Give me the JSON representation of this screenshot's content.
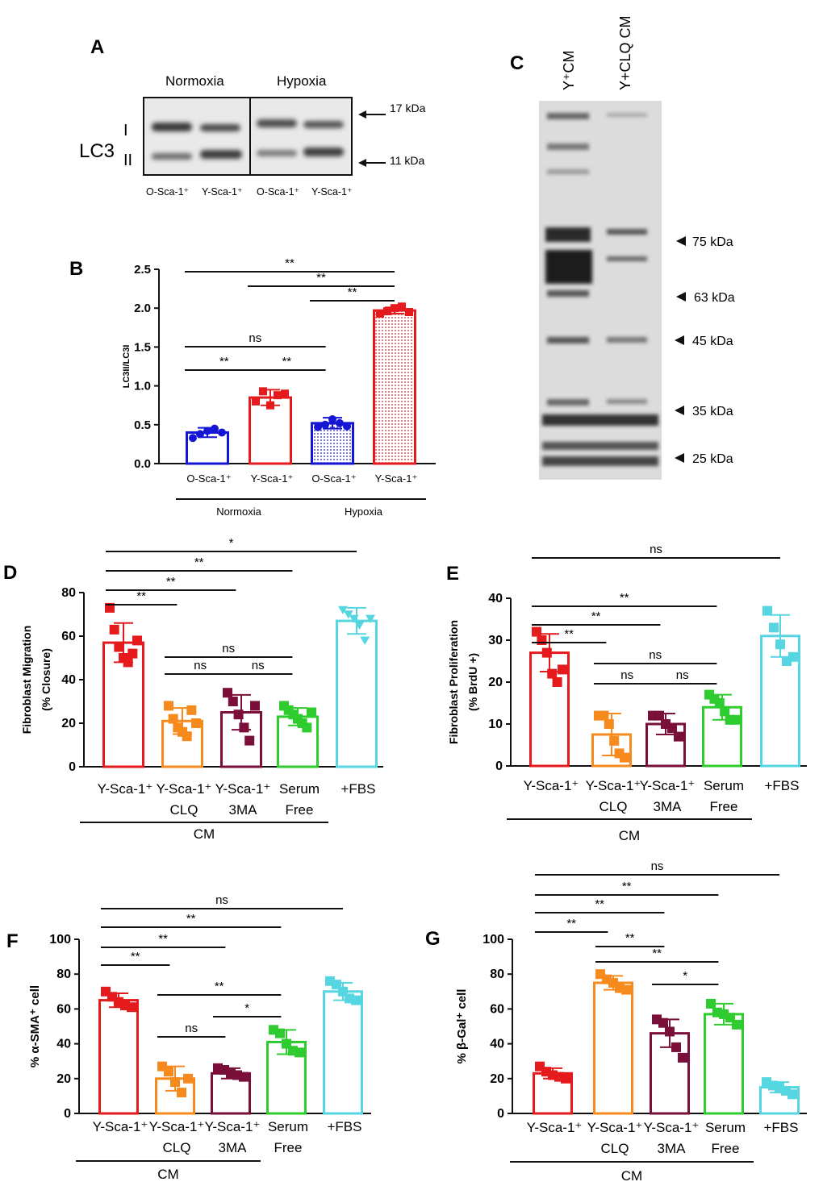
{
  "blotA": {
    "letter": "A",
    "target": "LC3",
    "band_top": "I",
    "band_bottom": "II",
    "groups": [
      "Normoxia",
      "Hypoxia"
    ],
    "lanes": [
      "O-Sca-1⁺",
      "Y-Sca-1⁺",
      "O-Sca-1⁺",
      "Y-Sca-1⁺"
    ],
    "markers": [
      "17 kDa",
      "11 kDa"
    ]
  },
  "blotC": {
    "letter": "C",
    "lanes": [
      "Y⁺CM",
      "Y+CLQ CM"
    ],
    "markers": [
      "75 kDa",
      "63 kDa",
      "45 kDa",
      "35 kDa",
      "25 kDa"
    ]
  },
  "chart_data": [
    {
      "id": "B",
      "letter": "B",
      "type": "bar",
      "ylabel": "LC3II/LC3I",
      "ylim": [
        0,
        2.5
      ],
      "yticks": [
        "0.0",
        "0.5",
        "1.0",
        "1.5",
        "2.0",
        "2.5"
      ],
      "tick_values": [
        0,
        0.5,
        1.0,
        1.5,
        2.0,
        2.5
      ],
      "categories": [
        "O-Sca-1⁺",
        "Y-Sca-1⁺",
        "O-Sca-1⁺",
        "Y-Sca-1⁺"
      ],
      "values": [
        0.4,
        0.85,
        0.52,
        1.97
      ],
      "errors": [
        0.06,
        0.1,
        0.07,
        0.04
      ],
      "points": [
        [
          0.33,
          0.38,
          0.42,
          0.45,
          0.4
        ],
        [
          0.8,
          0.93,
          0.75,
          0.88,
          0.9
        ],
        [
          0.47,
          0.5,
          0.57,
          0.52,
          0.48
        ],
        [
          1.93,
          1.96,
          2.0,
          2.02,
          1.95
        ]
      ],
      "colors": [
        "#1515d6",
        "#e41a1c",
        "#1515d6",
        "#e41a1c"
      ],
      "fills": [
        "none",
        "none",
        "dots",
        "dots"
      ],
      "markers": [
        "circle",
        "square",
        "circle",
        "square"
      ],
      "groups": [
        {
          "label": "Normoxia",
          "from": 0,
          "to": 1
        },
        {
          "label": "Hypoxia",
          "from": 2,
          "to": 3
        }
      ],
      "sig": [
        {
          "a": 0,
          "b": 3,
          "label": "**"
        },
        {
          "a": 1,
          "b": 3,
          "label": "**"
        },
        {
          "a": 2,
          "b": 3,
          "label": "**"
        },
        {
          "a": 0,
          "b": 2,
          "label": "ns"
        },
        {
          "a": 0,
          "b": 1,
          "label": "**"
        },
        {
          "a": 1,
          "b": 2,
          "label": "**"
        }
      ]
    },
    {
      "id": "D",
      "letter": "D",
      "type": "bar",
      "ylabel": "Fibroblast Migration",
      "ylabel2": "(% Closure)",
      "ylim": [
        0,
        80
      ],
      "yticks": [
        "0",
        "20",
        "40",
        "60",
        "80"
      ],
      "tick_values": [
        0,
        20,
        40,
        60,
        80
      ],
      "categories": [
        "Y-Sca-1⁺",
        "Y-Sca-1⁺",
        "Y-Sca-1⁺",
        "Serum",
        "+FBS"
      ],
      "categories2": [
        "",
        "CLQ",
        "3MA",
        "Free",
        ""
      ],
      "values": [
        57,
        21,
        25,
        23,
        67
      ],
      "errors": [
        9,
        6,
        8,
        4,
        6
      ],
      "points": [
        [
          73,
          63,
          55,
          50,
          48,
          52,
          58
        ],
        [
          28,
          22,
          18,
          16,
          14,
          26,
          20
        ],
        [
          34,
          30,
          24,
          18,
          12,
          28
        ],
        [
          28,
          26,
          24,
          22,
          20,
          18,
          25
        ],
        [
          72,
          70,
          68,
          65,
          58,
          68
        ]
      ],
      "colors": [
        "#e41a1c",
        "#f78a1d",
        "#7a0f3a",
        "#2ecc2e",
        "#55d6e0"
      ],
      "markers": [
        "square",
        "square",
        "square",
        "square",
        "tri"
      ],
      "group_label": "CM",
      "group_from": 0,
      "group_to": 3,
      "sig": [
        {
          "a": 0,
          "b": 4,
          "label": "*"
        },
        {
          "a": 0,
          "b": 3,
          "label": "**"
        },
        {
          "a": 0,
          "b": 2,
          "label": "**"
        },
        {
          "a": 0,
          "b": 1,
          "label": "**"
        },
        {
          "a": 1,
          "b": 3,
          "label": "ns"
        },
        {
          "a": 1,
          "b": 2,
          "label": "ns"
        },
        {
          "a": 2,
          "b": 3,
          "label": "ns"
        }
      ]
    },
    {
      "id": "E",
      "letter": "E",
      "type": "bar",
      "ylabel": "Fibroblast Proliferation",
      "ylabel2": "(% BrdU +)",
      "ylim": [
        0,
        40
      ],
      "yticks": [
        "0",
        "10",
        "20",
        "30",
        "40"
      ],
      "tick_values": [
        0,
        10,
        20,
        30,
        40
      ],
      "categories": [
        "Y-Sca-1⁺",
        "Y-Sca-1⁺",
        "Y-Sca-1⁺",
        "Serum",
        "+FBS"
      ],
      "categories2": [
        "",
        "CLQ",
        "3MA",
        "Free",
        ""
      ],
      "values": [
        27,
        7.5,
        10,
        14,
        31
      ],
      "errors": [
        4.5,
        5,
        2.5,
        3,
        5
      ],
      "points": [
        [
          32,
          30,
          27,
          22,
          20,
          23
        ],
        [
          12,
          12,
          10,
          6,
          3,
          2
        ],
        [
          12,
          12,
          10,
          9,
          7
        ],
        [
          17,
          16,
          15,
          13,
          11,
          11
        ],
        [
          37,
          33,
          29,
          25,
          26
        ]
      ],
      "colors": [
        "#e41a1c",
        "#f78a1d",
        "#7a0f3a",
        "#2ecc2e",
        "#55d6e0"
      ],
      "markers": [
        "square",
        "square",
        "square",
        "square",
        "square"
      ],
      "group_label": "CM",
      "group_from": 0,
      "group_to": 3,
      "sig": [
        {
          "a": 0,
          "b": 4,
          "label": "ns"
        },
        {
          "a": 0,
          "b": 3,
          "label": "**"
        },
        {
          "a": 0,
          "b": 2,
          "label": "**"
        },
        {
          "a": 0,
          "b": 1,
          "label": "**"
        },
        {
          "a": 1,
          "b": 3,
          "label": "ns"
        },
        {
          "a": 1,
          "b": 2,
          "label": "ns"
        },
        {
          "a": 2,
          "b": 3,
          "label": "ns"
        }
      ]
    },
    {
      "id": "F",
      "letter": "F",
      "type": "bar",
      "ylabel": "% α-SMA⁺ cell",
      "ylim": [
        0,
        100
      ],
      "yticks": [
        "0",
        "20",
        "40",
        "60",
        "80",
        "100"
      ],
      "tick_values": [
        0,
        20,
        40,
        60,
        80,
        100
      ],
      "categories": [
        "Y-Sca-1⁺",
        "Y-Sca-1⁺",
        "Y-Sca-1⁺",
        "Serum",
        "+FBS"
      ],
      "categories2": [
        "",
        "CLQ",
        "3MA",
        "Free",
        ""
      ],
      "values": [
        65,
        20,
        23,
        41,
        70
      ],
      "errors": [
        4,
        7,
        3,
        7,
        5
      ],
      "points": [
        [
          70,
          67,
          64,
          62,
          61
        ],
        [
          27,
          24,
          18,
          12,
          20
        ],
        [
          26,
          25,
          23,
          22,
          21
        ],
        [
          48,
          46,
          40,
          36,
          35
        ],
        [
          76,
          74,
          70,
          66,
          65
        ]
      ],
      "colors": [
        "#e41a1c",
        "#f78a1d",
        "#7a0f3a",
        "#2ecc2e",
        "#55d6e0"
      ],
      "markers": [
        "square",
        "square",
        "square",
        "square",
        "square"
      ],
      "group_label": "CM",
      "group_from": 0,
      "group_to": 2,
      "sig": [
        {
          "a": 0,
          "b": 4,
          "label": "ns"
        },
        {
          "a": 0,
          "b": 3,
          "label": "**"
        },
        {
          "a": 0,
          "b": 2,
          "label": "**"
        },
        {
          "a": 0,
          "b": 1,
          "label": "**"
        },
        {
          "a": 1,
          "b": 3,
          "label": "**"
        },
        {
          "a": 2,
          "b": 3,
          "label": "*"
        },
        {
          "a": 1,
          "b": 2,
          "label": "ns"
        }
      ]
    },
    {
      "id": "G",
      "letter": "G",
      "type": "bar",
      "ylabel": "% β-Gal⁺ cell",
      "ylim": [
        0,
        100
      ],
      "yticks": [
        "0",
        "20",
        "40",
        "60",
        "80",
        "100"
      ],
      "tick_values": [
        0,
        20,
        40,
        60,
        80,
        100
      ],
      "categories": [
        "Y-Sca-1⁺",
        "Y-Sca-1⁺",
        "Y-Sca-1⁺",
        "Serum",
        "+FBS"
      ],
      "categories2": [
        "",
        "CLQ",
        "3MA",
        "Free",
        ""
      ],
      "values": [
        23,
        75,
        46,
        57,
        15
      ],
      "errors": [
        3,
        4,
        8,
        6,
        3
      ],
      "points": [
        [
          27,
          24,
          22,
          21,
          20
        ],
        [
          80,
          77,
          75,
          72,
          71
        ],
        [
          54,
          52,
          47,
          38,
          32
        ],
        [
          63,
          58,
          57,
          55,
          51
        ],
        [
          18,
          16,
          15,
          13,
          11
        ]
      ],
      "colors": [
        "#e41a1c",
        "#f78a1d",
        "#7a0f3a",
        "#2ecc2e",
        "#55d6e0"
      ],
      "markers": [
        "square",
        "square",
        "square",
        "square",
        "square"
      ],
      "group_label": "CM",
      "group_from": 0,
      "group_to": 3,
      "sig": [
        {
          "a": 0,
          "b": 4,
          "label": "ns"
        },
        {
          "a": 0,
          "b": 3,
          "label": "**"
        },
        {
          "a": 0,
          "b": 2,
          "label": "**"
        },
        {
          "a": 0,
          "b": 1,
          "label": "**"
        },
        {
          "a": 1,
          "b": 3,
          "label": "**"
        },
        {
          "a": 1,
          "b": 2,
          "label": "**"
        },
        {
          "a": 2,
          "b": 3,
          "label": "*"
        }
      ]
    }
  ]
}
